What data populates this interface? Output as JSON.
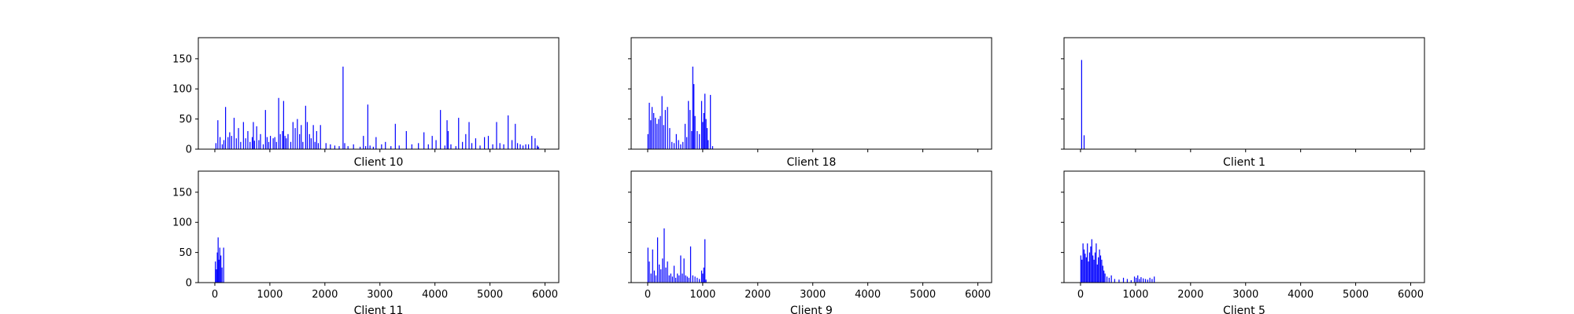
{
  "figure": {
    "x_ticks": [
      "0",
      "1000",
      "2000",
      "3000",
      "4000",
      "5000",
      "6000"
    ],
    "y_ticks": [
      "0",
      "50",
      "100",
      "150"
    ],
    "bar_color": "#0000ff",
    "frame_color": "#000000"
  },
  "chart_data": [
    {
      "type": "bar",
      "title": "Client 10",
      "xlim": [
        -300,
        6250
      ],
      "ylim": [
        0,
        185
      ],
      "x": [
        20,
        55,
        95,
        135,
        165,
        195,
        240,
        270,
        305,
        350,
        390,
        430,
        470,
        520,
        560,
        600,
        640,
        680,
        700,
        720,
        760,
        800,
        830,
        880,
        920,
        950,
        980,
        1010,
        1060,
        1090,
        1120,
        1160,
        1190,
        1230,
        1250,
        1275,
        1300,
        1330,
        1380,
        1420,
        1460,
        1500,
        1540,
        1570,
        1600,
        1650,
        1680,
        1720,
        1750,
        1790,
        1820,
        1850,
        1880,
        1920,
        2020,
        2100,
        2180,
        2260,
        2330,
        2360,
        2420,
        2520,
        2640,
        2700,
        2740,
        2780,
        2820,
        2880,
        2930,
        3030,
        3100,
        3200,
        3280,
        3350,
        3480,
        3580,
        3700,
        3800,
        3880,
        3950,
        4020,
        4100,
        4180,
        4220,
        4240,
        4290,
        4380,
        4430,
        4500,
        4560,
        4620,
        4670,
        4740,
        4820,
        4900,
        4970,
        5050,
        5120,
        5180,
        5250,
        5330,
        5400,
        5460,
        5500,
        5550,
        5600,
        5650,
        5700,
        5760,
        5820,
        5860,
        5880
      ],
      "values": [
        10,
        48,
        20,
        8,
        15,
        70,
        20,
        28,
        22,
        52,
        18,
        35,
        12,
        45,
        18,
        30,
        12,
        20,
        45,
        14,
        38,
        15,
        25,
        8,
        65,
        20,
        12,
        22,
        18,
        20,
        12,
        85,
        25,
        30,
        80,
        22,
        18,
        25,
        12,
        45,
        35,
        50,
        25,
        40,
        12,
        72,
        45,
        25,
        18,
        40,
        12,
        30,
        10,
        40,
        10,
        8,
        6,
        5,
        137,
        10,
        5,
        8,
        4,
        22,
        5,
        74,
        6,
        4,
        20,
        8,
        12,
        5,
        42,
        6,
        30,
        8,
        10,
        28,
        8,
        22,
        15,
        65,
        6,
        48,
        30,
        8,
        5,
        52,
        12,
        25,
        45,
        10,
        18,
        6,
        20,
        22,
        8,
        45,
        10,
        8,
        56,
        15,
        42,
        10,
        8,
        6,
        8,
        8,
        22,
        18,
        6,
        4
      ]
    },
    {
      "type": "bar",
      "title": "Client 18",
      "xlim": [
        -300,
        6250
      ],
      "ylim": [
        0,
        185
      ],
      "x": [
        5,
        30,
        55,
        80,
        110,
        140,
        170,
        200,
        230,
        260,
        290,
        320,
        360,
        400,
        440,
        480,
        520,
        560,
        600,
        640,
        680,
        710,
        740,
        770,
        800,
        820,
        840,
        860,
        900,
        940,
        980,
        1000,
        1020,
        1040,
        1060,
        1080,
        1100,
        1140,
        1180
      ],
      "values": [
        25,
        77,
        48,
        70,
        60,
        52,
        42,
        50,
        55,
        88,
        40,
        65,
        70,
        35,
        12,
        10,
        25,
        15,
        8,
        12,
        42,
        20,
        80,
        65,
        30,
        137,
        108,
        55,
        30,
        25,
        80,
        45,
        60,
        92,
        50,
        35,
        15,
        90,
        5
      ]
    },
    {
      "type": "bar",
      "title": "Client 1",
      "xlim": [
        -300,
        6250
      ],
      "ylim": [
        0,
        185
      ],
      "x": [
        20,
        65
      ],
      "values": [
        148,
        23
      ]
    },
    {
      "type": "bar",
      "title": "Client 11",
      "xlim": [
        -300,
        6250
      ],
      "ylim": [
        0,
        185
      ],
      "x": [
        10,
        30,
        45,
        60,
        75,
        90,
        110,
        130,
        160
      ],
      "values": [
        35,
        22,
        50,
        75,
        38,
        58,
        45,
        25,
        58
      ]
    },
    {
      "type": "bar",
      "title": "Client 9",
      "xlim": [
        -300,
        6250
      ],
      "ylim": [
        0,
        185
      ],
      "x": [
        5,
        30,
        60,
        90,
        120,
        150,
        180,
        210,
        240,
        270,
        300,
        330,
        360,
        390,
        420,
        450,
        480,
        510,
        540,
        570,
        600,
        630,
        660,
        690,
        720,
        750,
        780,
        820,
        860,
        900,
        940,
        980,
        1000,
        1020,
        1040,
        1060
      ],
      "values": [
        58,
        35,
        15,
        55,
        20,
        12,
        75,
        30,
        22,
        40,
        90,
        25,
        35,
        12,
        15,
        10,
        28,
        8,
        15,
        12,
        45,
        15,
        40,
        12,
        10,
        8,
        60,
        12,
        10,
        8,
        6,
        20,
        15,
        25,
        72,
        5
      ]
    },
    {
      "type": "bar",
      "title": "Client 5",
      "xlim": [
        -300,
        6250
      ],
      "ylim": [
        0,
        185
      ],
      "x": [
        5,
        25,
        45,
        65,
        85,
        105,
        125,
        145,
        165,
        185,
        205,
        225,
        245,
        265,
        285,
        305,
        325,
        345,
        365,
        385,
        405,
        425,
        445,
        480,
        520,
        560,
        620,
        700,
        780,
        850,
        920,
        980,
        1010,
        1040,
        1070,
        1100,
        1140,
        1180,
        1220,
        1260,
        1300,
        1340
      ],
      "values": [
        45,
        38,
        65,
        55,
        48,
        42,
        65,
        35,
        50,
        60,
        72,
        45,
        38,
        50,
        65,
        30,
        42,
        55,
        45,
        38,
        28,
        20,
        15,
        10,
        8,
        12,
        6,
        5,
        8,
        6,
        4,
        10,
        8,
        12,
        6,
        9,
        7,
        6,
        5,
        8,
        6,
        10
      ]
    }
  ]
}
